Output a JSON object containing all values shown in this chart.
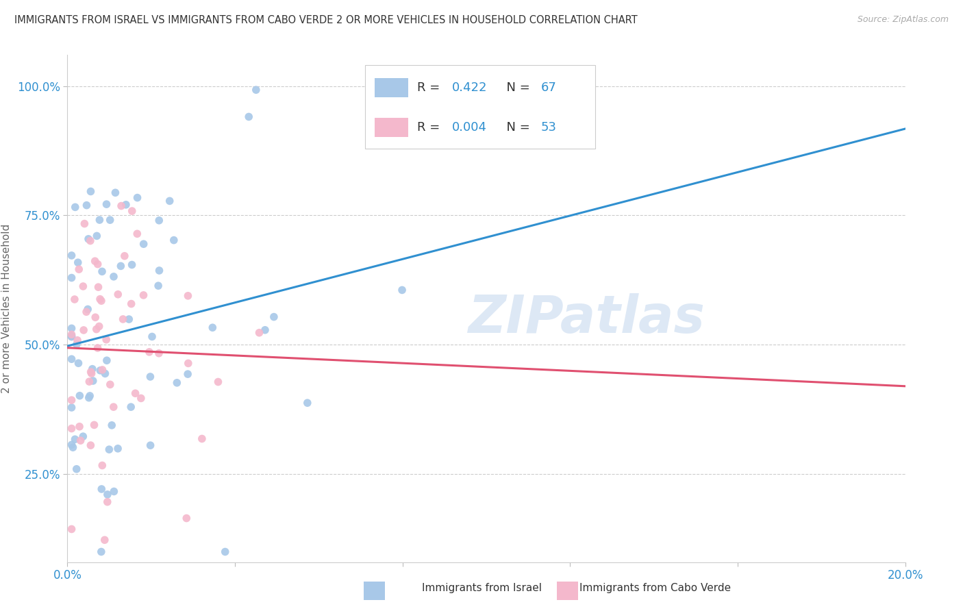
{
  "title": "IMMIGRANTS FROM ISRAEL VS IMMIGRANTS FROM CABO VERDE 2 OR MORE VEHICLES IN HOUSEHOLD CORRELATION CHART",
  "source": "Source: ZipAtlas.com",
  "ylabel": "2 or more Vehicles in Household",
  "xlim": [
    0.0,
    0.2
  ],
  "ylim": [
    0.08,
    1.06
  ],
  "ytick_vals": [
    0.25,
    0.5,
    0.75,
    1.0
  ],
  "ytick_labels": [
    "25.0%",
    "50.0%",
    "75.0%",
    "100.0%"
  ],
  "xtick_vals": [
    0.0,
    0.04,
    0.08,
    0.12,
    0.16,
    0.2
  ],
  "xtick_labels": [
    "0.0%",
    "",
    "",
    "",
    "",
    "20.0%"
  ],
  "israel_R": 0.422,
  "israel_N": 67,
  "caboverde_R": 0.004,
  "caboverde_N": 53,
  "israel_color": "#a8c8e8",
  "caboverde_color": "#f4b8cc",
  "israel_line_color": "#3090d0",
  "caboverde_line_color": "#e05070",
  "background_color": "#ffffff",
  "watermark_color": "#dde8f5",
  "israel_seed": 12,
  "caboverde_seed": 7
}
